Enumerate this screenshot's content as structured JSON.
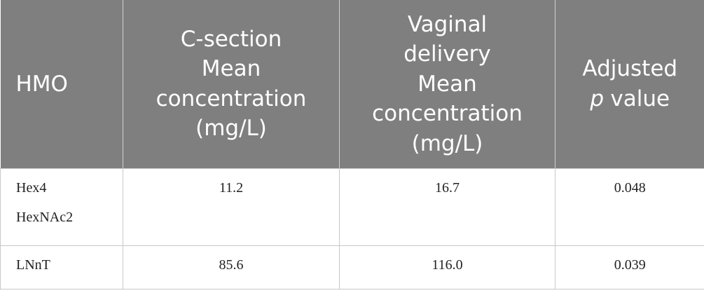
{
  "table": {
    "header": [
      {
        "lines": [
          "HMO"
        ]
      },
      {
        "lines": [
          "C-section",
          "Mean",
          "concentration",
          "(mg/L)"
        ]
      },
      {
        "lines": [
          "Vaginal",
          "delivery",
          "Mean",
          "concentration",
          "(mg/L)"
        ]
      },
      {
        "lines": [
          "Adjusted",
          [
            {
              "text": "p",
              "italic": true
            },
            {
              "text": "value"
            }
          ]
        ]
      }
    ],
    "rows": [
      [
        "Hex4 HexNAc2",
        "11.2",
        "16.7",
        "0.048"
      ],
      [
        "LNnT",
        "85.6",
        "116.0",
        "0.039"
      ]
    ]
  }
}
